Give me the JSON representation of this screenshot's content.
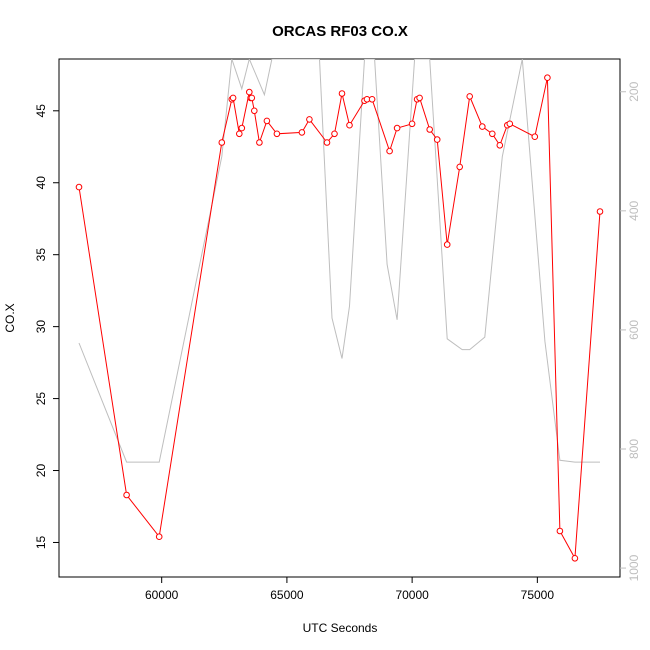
{
  "chart_data": {
    "type": "line",
    "title": "ORCAS RF03 CO.X",
    "xlabel": "UTC Seconds",
    "ylabel": "CO.X",
    "xlim": [
      55900,
      78300
    ],
    "ylim": [
      12.6,
      48.6
    ],
    "y2lim": [
      1015,
      145
    ],
    "x_ticks": [
      60000,
      65000,
      70000,
      75000
    ],
    "y_ticks": [
      15,
      20,
      25,
      30,
      35,
      40,
      45
    ],
    "y2_ticks": [
      200,
      400,
      600,
      800,
      1000
    ],
    "colors": {
      "primary": "#ff0000",
      "secondary": "#bebebe",
      "axis": "#000000"
    },
    "grid": false,
    "legend": "none",
    "series": [
      {
        "axis": "left",
        "style": "line+markers",
        "color": "#ff0000",
        "x": [
          56700,
          58600,
          59900,
          62400,
          62800,
          62850,
          63100,
          63200,
          63500,
          63550,
          63600,
          63700,
          63900,
          64200,
          64600,
          65600,
          65900,
          66600,
          66900,
          67200,
          67500,
          68100,
          68200,
          68400,
          69100,
          69400,
          70000,
          70200,
          70300,
          70700,
          71000,
          71400,
          71900,
          72300,
          72800,
          73200,
          73500,
          73800,
          73900,
          74900,
          75400,
          75900,
          76500,
          77500
        ],
        "y": [
          39.7,
          18.3,
          15.4,
          42.8,
          45.8,
          45.9,
          43.4,
          43.8,
          46.3,
          45.9,
          45.9,
          45.0,
          42.8,
          44.3,
          43.4,
          43.5,
          44.4,
          42.8,
          43.4,
          46.2,
          44.0,
          45.7,
          45.8,
          45.8,
          42.2,
          43.8,
          44.1,
          45.8,
          45.9,
          43.7,
          43.0,
          35.7,
          41.1,
          46.0,
          43.9,
          43.4,
          42.6,
          44.0,
          44.1,
          43.2,
          47.3,
          15.8,
          13.9,
          38.0
        ]
      },
      {
        "axis": "right",
        "style": "line",
        "color": "#bebebe",
        "x": [
          56700,
          58600,
          59900,
          62400,
          62800,
          63200,
          63500,
          64100,
          64400,
          65600,
          66300,
          66800,
          67200,
          67500,
          68100,
          68500,
          69000,
          69400,
          70100,
          70700,
          71400,
          72000,
          72300,
          72900,
          73600,
          74400,
          75300,
          75900,
          76500,
          77500
        ],
        "y": [
          622,
          822,
          822,
          309,
          145,
          195,
          145,
          205,
          145,
          145,
          145,
          580,
          648,
          560,
          145,
          145,
          490,
          583,
          145,
          145,
          615,
          633,
          633,
          612,
          309,
          145,
          619,
          819,
          822,
          822
        ]
      }
    ]
  }
}
